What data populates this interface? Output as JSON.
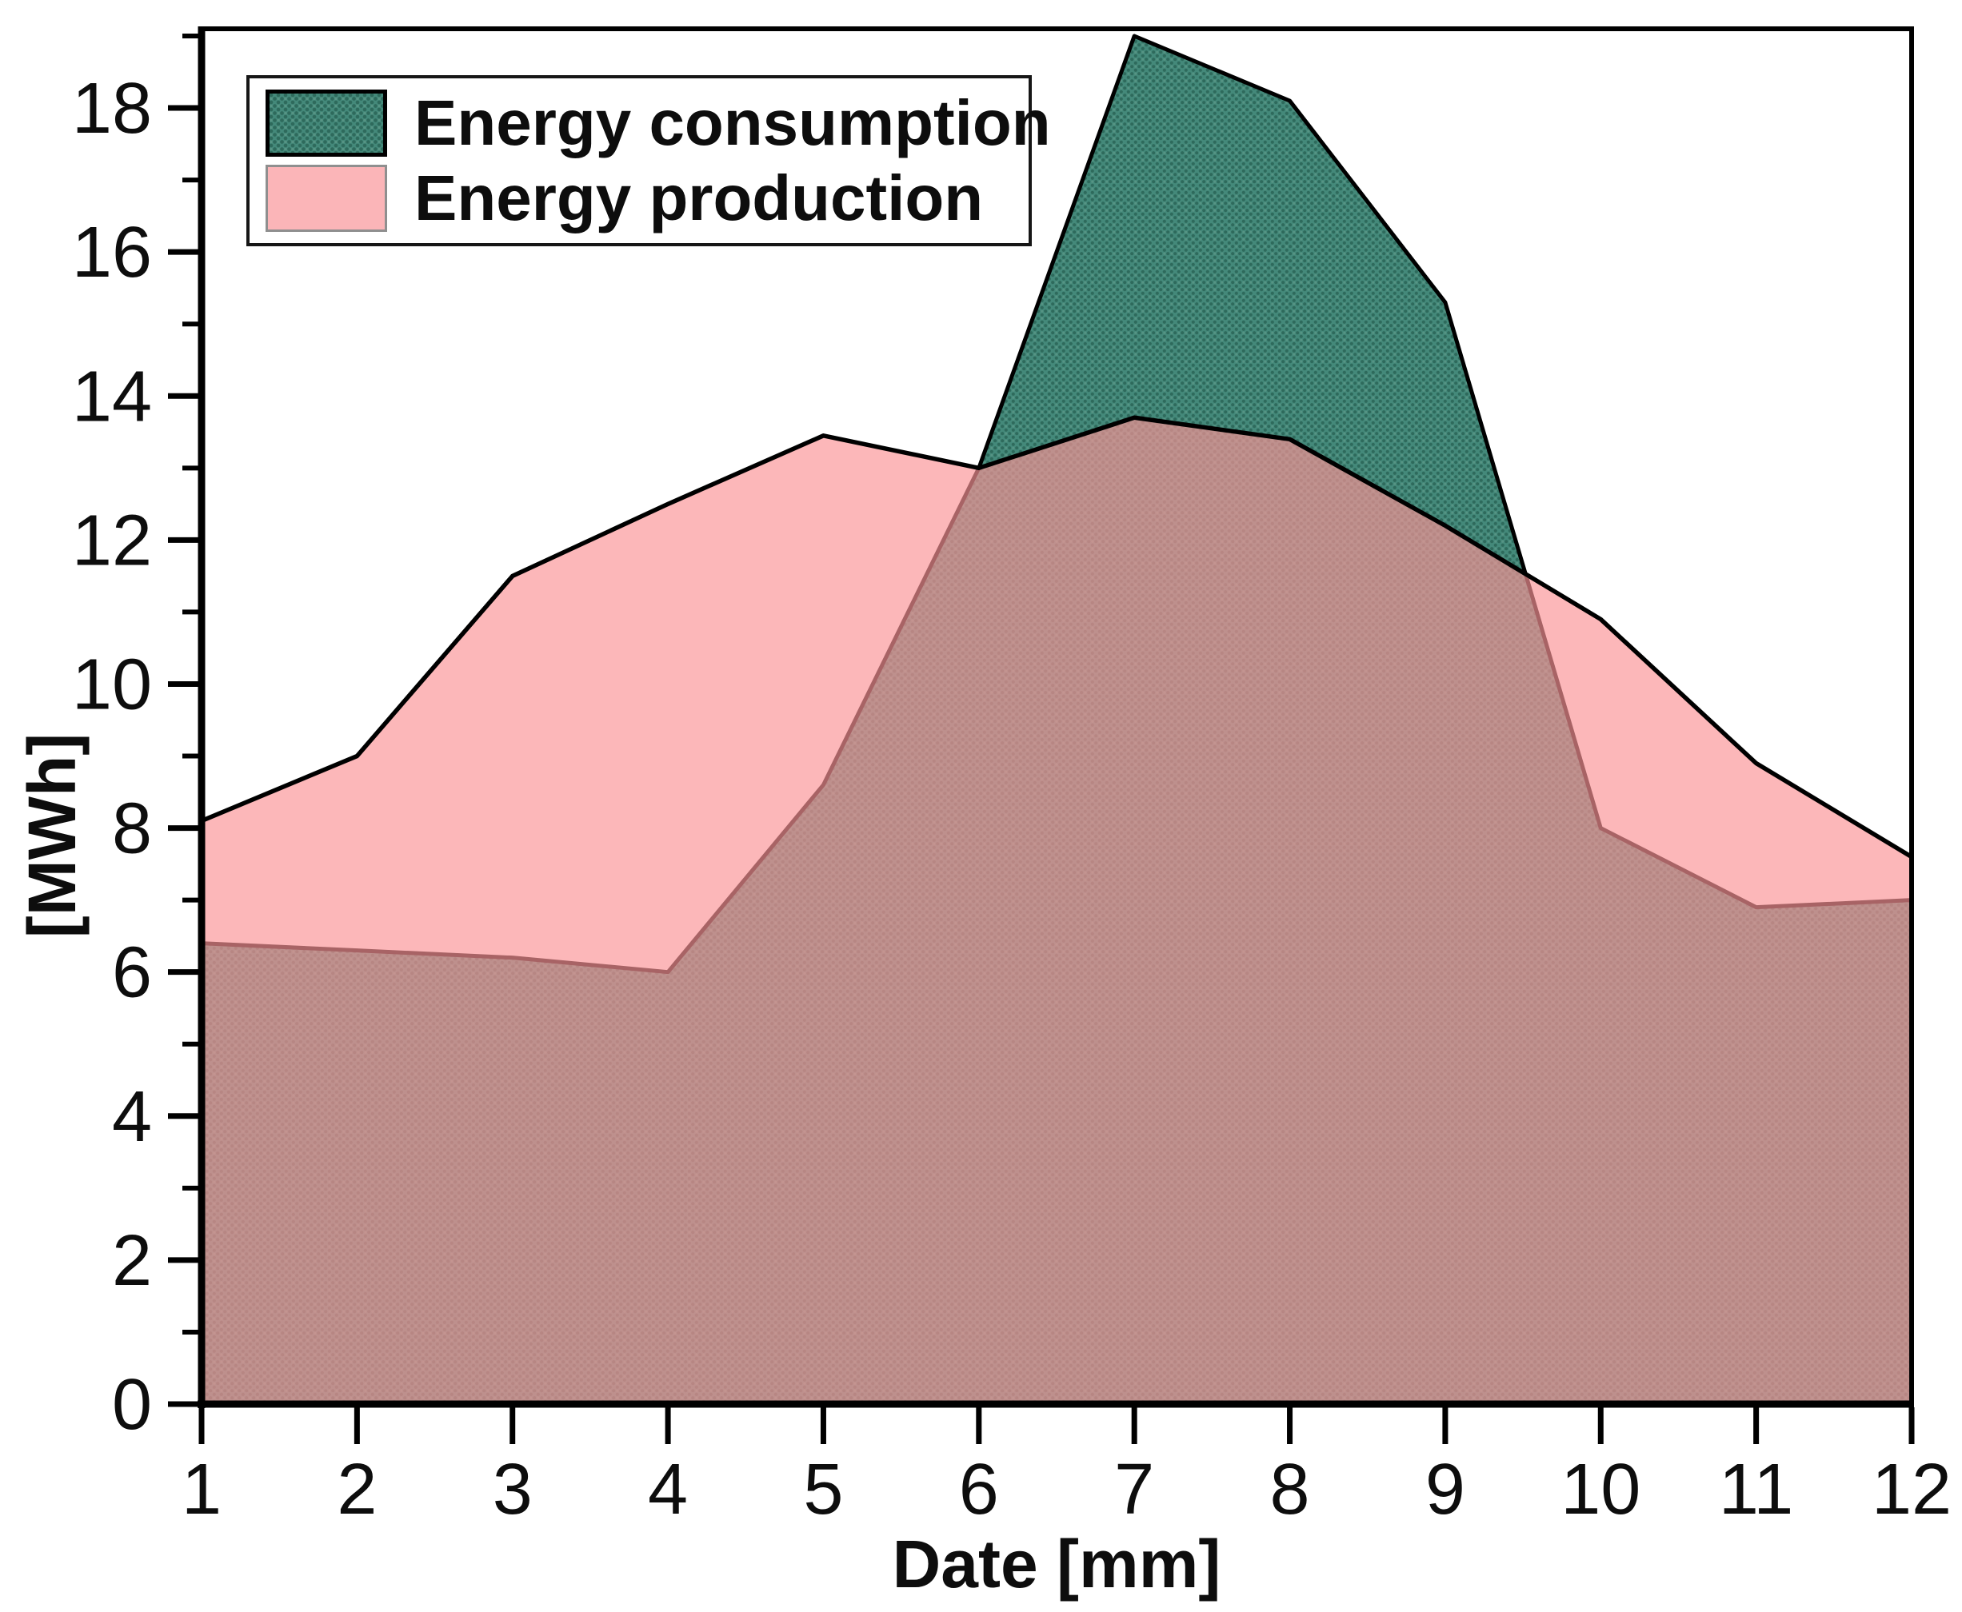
{
  "page": {
    "background": "#ffffff"
  },
  "chart_data": {
    "type": "area",
    "title": "",
    "xlabel": "Date [mm]",
    "ylabel": "[MWh]",
    "x": [
      1,
      2,
      3,
      4,
      5,
      6,
      7,
      8,
      9,
      10,
      11,
      12
    ],
    "x_tick_labels": [
      "1",
      "2",
      "3",
      "4",
      "5",
      "6",
      "7",
      "8",
      "9",
      "10",
      "11",
      "12"
    ],
    "y_major_ticks": [
      0,
      2,
      4,
      6,
      8,
      10,
      12,
      14,
      16,
      18
    ],
    "y_minor_ticks": [
      1,
      3,
      5,
      7,
      9,
      11,
      13,
      15,
      17,
      19
    ],
    "xlim": [
      1,
      12
    ],
    "ylim": [
      0,
      19.1
    ],
    "grid": false,
    "legend_position": "top-left",
    "series": [
      {
        "name": "Energy consumption",
        "values": [
          6.4,
          6.3,
          6.2,
          6.0,
          8.6,
          13.0,
          19.0,
          18.1,
          15.3,
          8.0,
          6.9,
          7.0
        ],
        "fill_style": "dot-pattern",
        "fill_base": "#44897a",
        "dot_color": "#2e6a5c",
        "dot_color_light": "#579484",
        "line_color": "#000000"
      },
      {
        "name": "Energy production",
        "values": [
          8.1,
          9.0,
          11.5,
          12.5,
          13.45,
          13.0,
          13.7,
          13.4,
          12.2,
          10.9,
          8.9,
          7.6
        ],
        "fill_style": "translucent-solid",
        "fill": "rgba(250,148,150,0.67)",
        "legend_swatch": "#fbb5b8",
        "swatch_border": "#8f8f8f",
        "line_color": "#000000"
      }
    ],
    "overlap_color": "#c07f73",
    "axis_color": "#000000",
    "tick_label_color": "#0d0d0d"
  }
}
